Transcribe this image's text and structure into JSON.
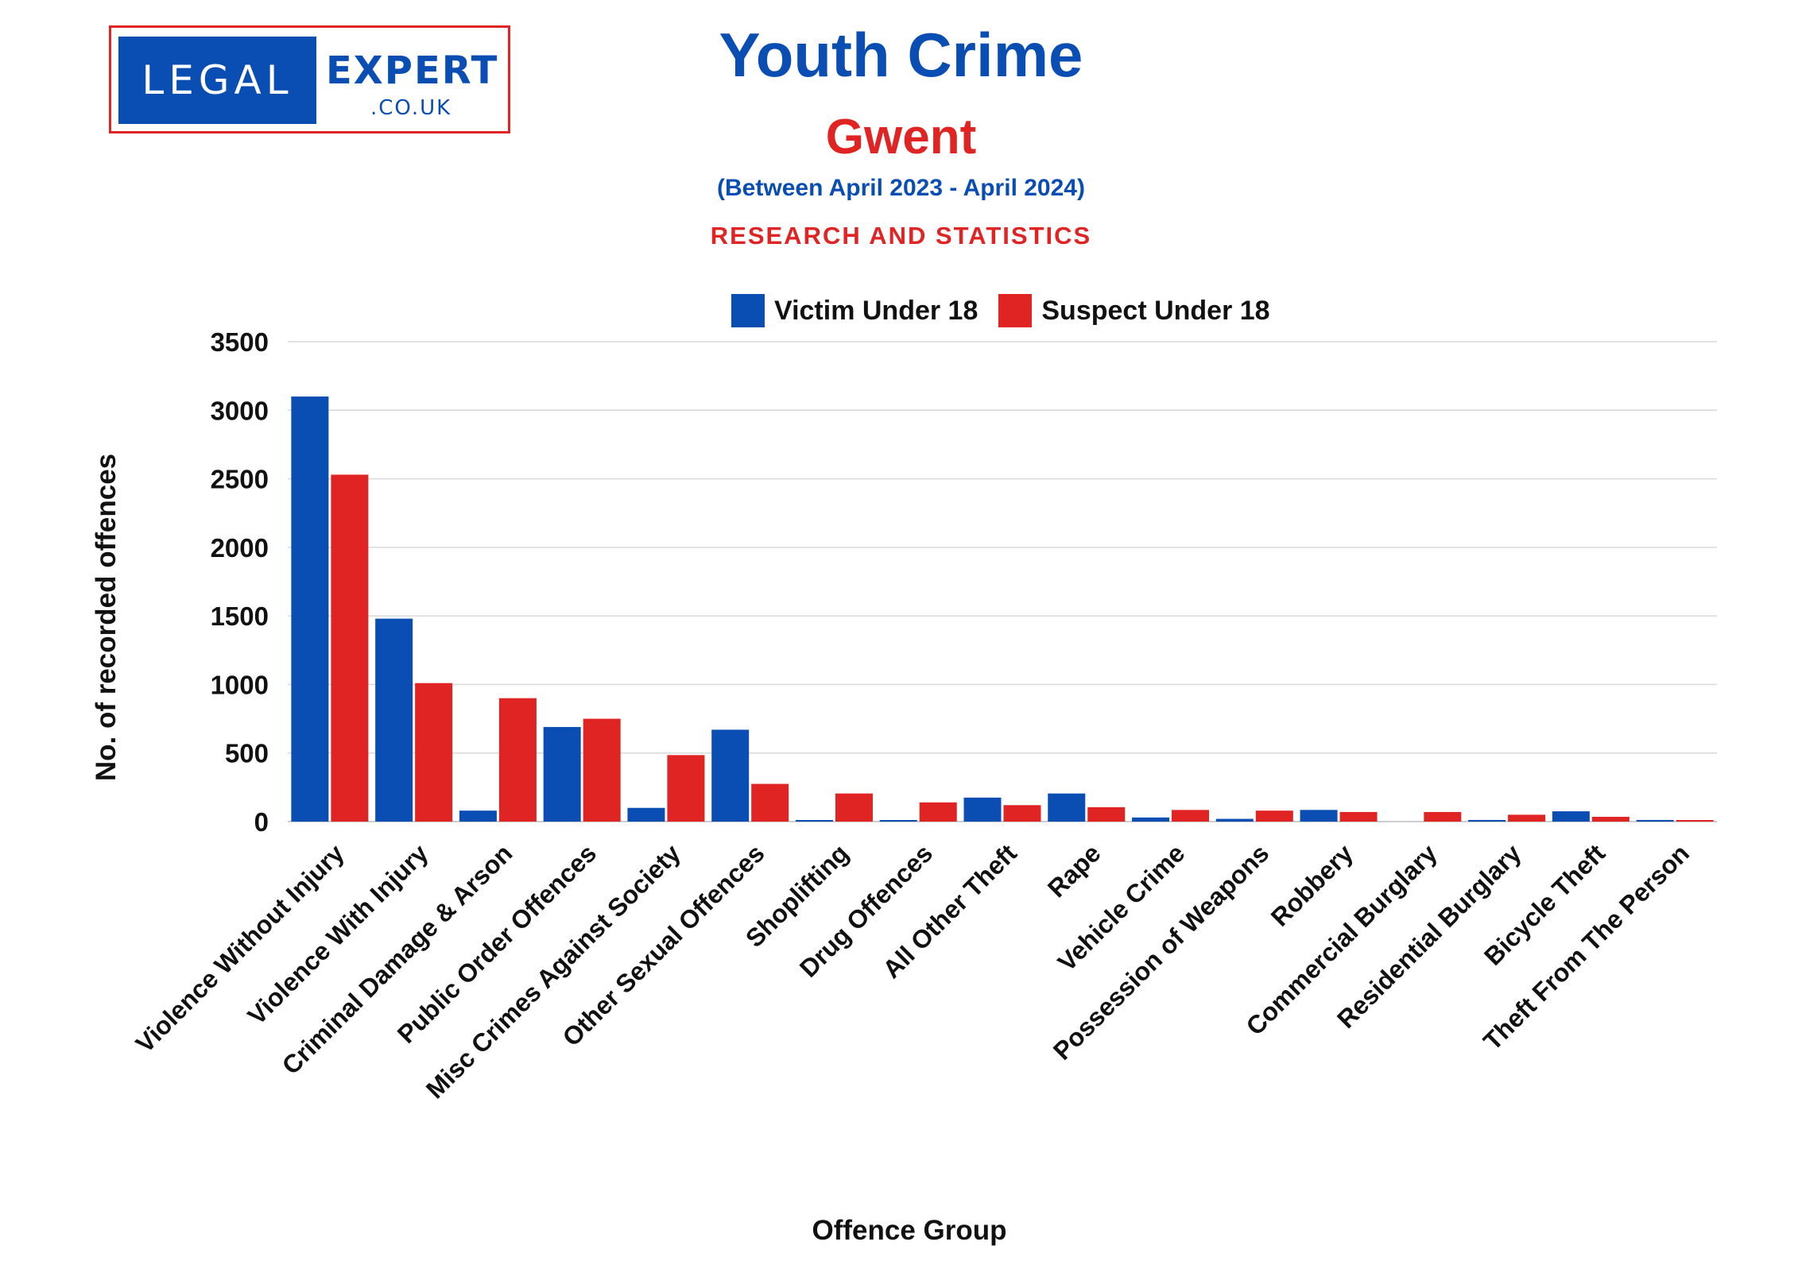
{
  "logo": {
    "left_text": "LEGAL",
    "right_text": "EXPERT",
    "suffix": ".CO.UK"
  },
  "header": {
    "title": "Youth Crime",
    "subtitle": "Gwent",
    "period": "(Between April 2023 - April 2024)",
    "tagline": "RESEARCH AND STATISTICS"
  },
  "colors": {
    "victim": "#0a4db3",
    "suspect": "#e02424",
    "grid": "#d9d9d9"
  },
  "chart_data": {
    "type": "bar",
    "title": "Youth Crime",
    "xlabel": "Offence Group",
    "ylabel": "No. of recorded offences",
    "ylim": [
      0,
      3500
    ],
    "yticks": [
      0,
      500,
      1000,
      1500,
      2000,
      2500,
      3000,
      3500
    ],
    "grid": true,
    "legend_position": "top-center",
    "categories": [
      "Violence Without Injury",
      "Violence With Injury",
      "Criminal Damage & Arson",
      "Public Order Offences",
      "Misc Crimes Against Society",
      "Other Sexual Offences",
      "Shoplifting",
      "Drug Offences",
      "All Other Theft",
      "Rape",
      "Vehicle Crime",
      "Possession of Weapons",
      "Robbery",
      "Commercial Burglary",
      "Residential Burglary",
      "Bicycle Theft",
      "Theft From The Person"
    ],
    "series": [
      {
        "name": "Victim Under 18",
        "values": [
          3100,
          1480,
          80,
          690,
          100,
          670,
          5,
          8,
          175,
          205,
          30,
          20,
          85,
          0,
          12,
          75,
          12
        ]
      },
      {
        "name": "Suspect Under 18",
        "values": [
          2530,
          1010,
          900,
          750,
          485,
          275,
          205,
          140,
          120,
          105,
          85,
          80,
          70,
          70,
          50,
          35,
          8
        ]
      }
    ]
  }
}
